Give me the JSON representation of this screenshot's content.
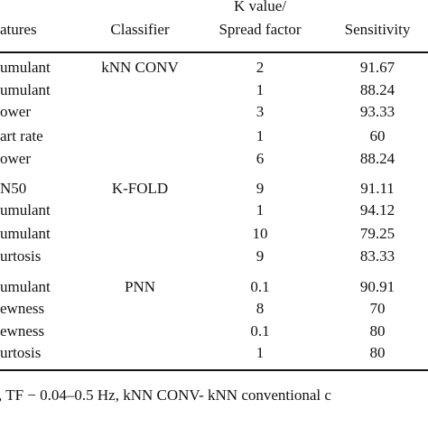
{
  "table": {
    "header": {
      "features": "atures",
      "classifier": "Classifier",
      "k_value": [
        "K value/",
        "Spread factor"
      ],
      "sensitivity": "Sensitivity"
    },
    "groups": [
      {
        "classifier": "kNN CONV",
        "rows": [
          [
            "umulant",
            "2",
            "91.67"
          ],
          [
            "umulant",
            "1",
            "88.24"
          ],
          [
            "ower",
            "3",
            "93.33"
          ],
          [
            "art rate",
            "1",
            "60"
          ],
          [
            "ower",
            "6",
            "88.24"
          ]
        ]
      },
      {
        "classifier": "K-FOLD",
        "rows": [
          [
            "N50",
            "9",
            "91.11"
          ],
          [
            "umulant",
            "1",
            "94.12"
          ],
          [
            "umulant",
            "10",
            "79.25"
          ],
          [
            "urtosis",
            "9",
            "83.33"
          ]
        ]
      },
      {
        "classifier": "PNN",
        "rows": [
          [
            "umulant",
            "0.1",
            "90.91"
          ],
          [
            "ewness",
            "8",
            "70"
          ],
          [
            "ewness",
            "0.1",
            "80"
          ],
          [
            "urtosis",
            "1",
            "80"
          ]
        ]
      }
    ],
    "footnote": ", TF − 0.04–0.5 Hz, kNN CONV- kNN conventional c"
  }
}
